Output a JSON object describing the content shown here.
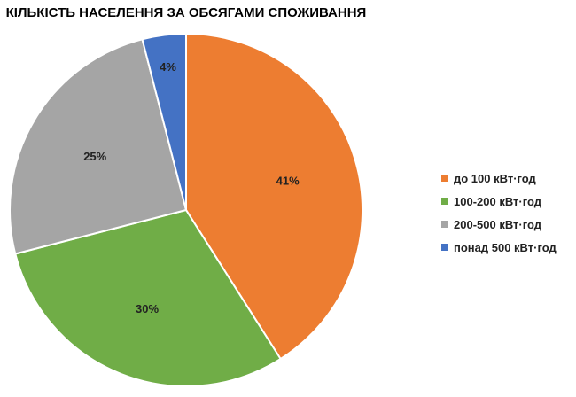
{
  "chart_data": {
    "type": "pie",
    "title": "КІЛЬКІСТЬ НАСЕЛЕННЯ ЗА ОБСЯГАМИ СПОЖИВАННЯ",
    "categories": [
      "до 100 кВт·год",
      "100-200 кВт·год",
      "200-500 кВт·год",
      "понад 500 кВт·год"
    ],
    "values": [
      41,
      30,
      25,
      4
    ],
    "labels": [
      "41%",
      "30%",
      "25%",
      "4%"
    ],
    "colors": [
      "#ED7D31",
      "#70AD47",
      "#A5A5A5",
      "#4472C4"
    ],
    "legend_position": "right"
  }
}
